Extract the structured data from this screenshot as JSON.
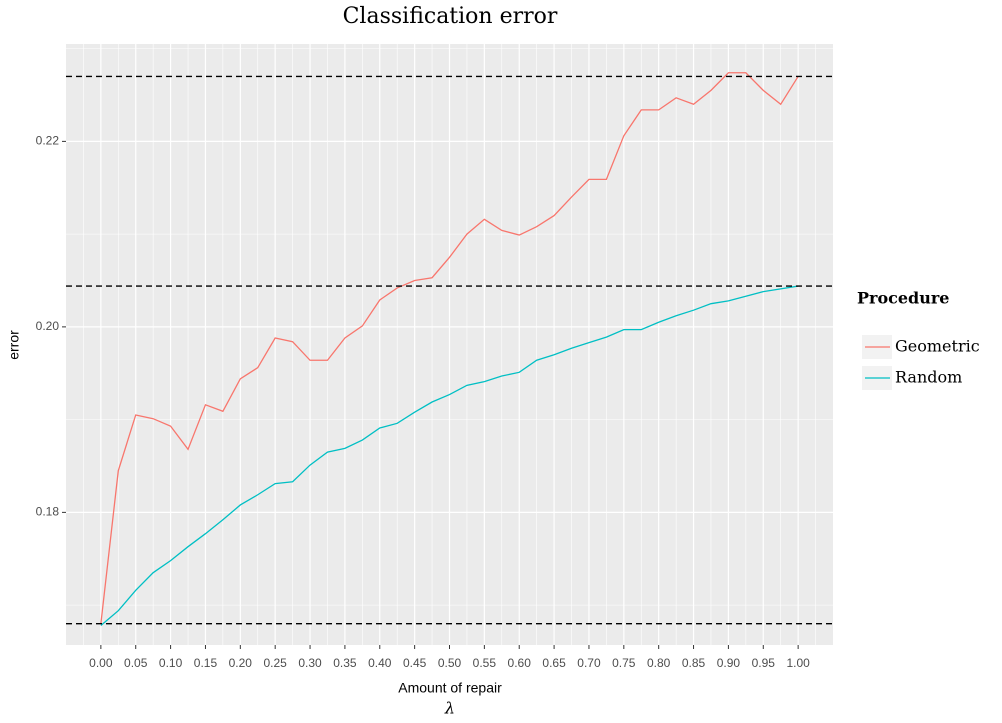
{
  "chart_data": {
    "type": "line",
    "title": "Classification error",
    "x_label": "Amount of repair",
    "x_label_symbol": "λ",
    "y_label": "error",
    "legend_title": "Procedure",
    "x": [
      0,
      0.025,
      0.05,
      0.075,
      0.1,
      0.125,
      0.15,
      0.175,
      0.2,
      0.225,
      0.25,
      0.275,
      0.3,
      0.325,
      0.35,
      0.375,
      0.4,
      0.425,
      0.45,
      0.475,
      0.5,
      0.525,
      0.55,
      0.575,
      0.6,
      0.625,
      0.65,
      0.675,
      0.7,
      0.725,
      0.75,
      0.775,
      0.8,
      0.825,
      0.85,
      0.875,
      0.9,
      0.925,
      0.95,
      0.975,
      1.0
    ],
    "series": [
      {
        "name": "Geometric",
        "color": "#F8766D",
        "values": [
          0.168,
          0.1845,
          0.1905,
          0.1901,
          0.1893,
          0.1868,
          0.1916,
          0.1909,
          0.1944,
          0.1956,
          0.1988,
          0.1984,
          0.1964,
          0.1964,
          0.1988,
          0.2001,
          0.2029,
          0.2042,
          0.205,
          0.2053,
          0.2075,
          0.21,
          0.2116,
          0.2104,
          0.2099,
          0.2108,
          0.212,
          0.214,
          0.2159,
          0.2159,
          0.2206,
          0.2234,
          0.2234,
          0.2247,
          0.224,
          0.2255,
          0.2274,
          0.2274,
          0.2255,
          0.224,
          0.227
        ]
      },
      {
        "name": "Random",
        "color": "#00BFC4",
        "values": [
          0.1678,
          0.1694,
          0.1716,
          0.1735,
          0.1748,
          0.1763,
          0.1777,
          0.1792,
          0.1808,
          0.1819,
          0.1831,
          0.1833,
          0.1851,
          0.1865,
          0.1869,
          0.1878,
          0.1891,
          0.1896,
          0.1908,
          0.1919,
          0.1927,
          0.1937,
          0.1941,
          0.1947,
          0.1951,
          0.1964,
          0.197,
          0.1977,
          0.1983,
          0.1989,
          0.1997,
          0.1997,
          0.2005,
          0.2012,
          0.2018,
          0.2025,
          0.2028,
          0.2033,
          0.2038,
          0.2041,
          0.2044
        ]
      }
    ],
    "hlines": [
      0.227,
      0.2044,
      0.168
    ],
    "xlim": [
      -0.05,
      1.05
    ],
    "ylim": [
      0.1657,
      0.2305
    ],
    "xticks": [
      {
        "value": 0,
        "label": "0.00"
      },
      {
        "value": 0.05,
        "label": "0.05"
      },
      {
        "value": 0.1,
        "label": "0.10"
      },
      {
        "value": 0.15,
        "label": "0.15"
      },
      {
        "value": 0.2,
        "label": "0.20"
      },
      {
        "value": 0.25,
        "label": "0.25"
      },
      {
        "value": 0.3,
        "label": "0.30"
      },
      {
        "value": 0.35,
        "label": "0.35"
      },
      {
        "value": 0.4,
        "label": "0.40"
      },
      {
        "value": 0.45,
        "label": "0.45"
      },
      {
        "value": 0.5,
        "label": "0.50"
      },
      {
        "value": 0.55,
        "label": "0.55"
      },
      {
        "value": 0.6,
        "label": "0.60"
      },
      {
        "value": 0.65,
        "label": "0.65"
      },
      {
        "value": 0.7,
        "label": "0.70"
      },
      {
        "value": 0.75,
        "label": "0.75"
      },
      {
        "value": 0.8,
        "label": "0.80"
      },
      {
        "value": 0.85,
        "label": "0.85"
      },
      {
        "value": 0.9,
        "label": "0.90"
      },
      {
        "value": 0.95,
        "label": "0.95"
      },
      {
        "value": 1.0,
        "label": "1.00"
      }
    ],
    "yticks": [
      {
        "value": 0.18,
        "label": "0.18"
      },
      {
        "value": 0.2,
        "label": "0.20"
      },
      {
        "value": 0.22,
        "label": "0.22"
      }
    ],
    "grid": true
  }
}
